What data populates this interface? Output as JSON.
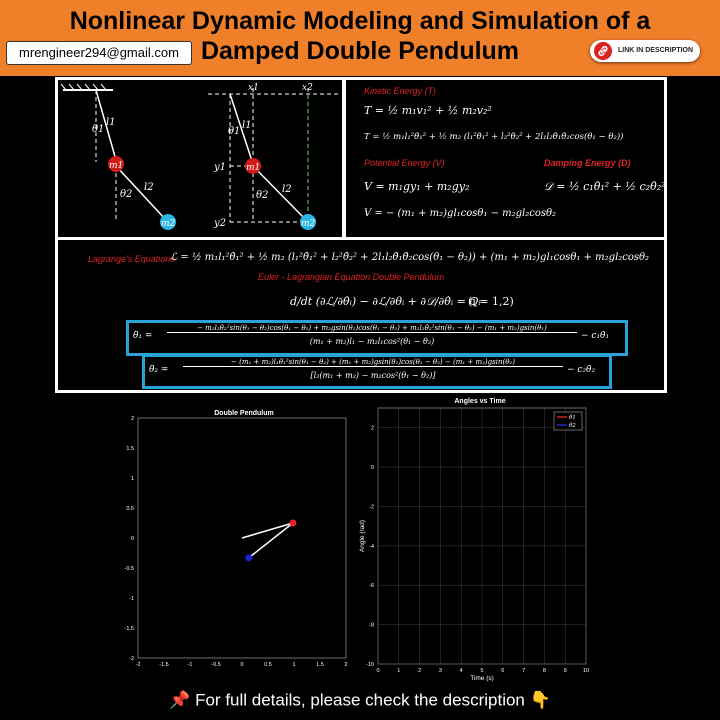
{
  "header": {
    "title": "Nonlinear Dynamic Modeling and Simulation of a Damped Double Pendulum",
    "email": "mrengineer294@gmail.com",
    "link_label": "LINK IN DESCRIPTION",
    "bg_color": "#f07f2a"
  },
  "diagram": {
    "labels": {
      "theta1": "θ1",
      "l1": "l1",
      "m1": "m1",
      "theta2": "θ2",
      "l2": "l2",
      "m2": "m2",
      "x1": "x1",
      "x2": "x2",
      "y1": "y1",
      "y2": "y2"
    },
    "m1_color": "#d11a1a",
    "m2_color": "#2ab6e6"
  },
  "energy": {
    "kinetic_title": "Kinetic Energy (T)",
    "kinetic_eq1": "T = ½ m₁v₁² + ½ m₂v₂²",
    "kinetic_eq2": "T = ½ m₁l₁²θ̇₁² + ½ m₂ (l₁²θ̇₁² + l₂²θ̇₂² + 2l₁l₂θ̇₁θ̇₂cos(θ₁ − θ₂))",
    "potential_title": "Potential Energy (V)",
    "potential_eq1": "V = m₁gy₁ + m₂gy₂",
    "potential_eq2": "V = − (m₁ + m₂)gl₁cosθ₁ − m₂gl₂cosθ₂",
    "damping_title": "Damping Energy (D)",
    "damping_eq": "𝒟 = ½ c₁θ̇₁² + ½ c₂θ̇₂²"
  },
  "lagrange": {
    "title": "Lagrange's Equations",
    "eq": "ℒ = ½ m₁l₁²θ̇₁² + ½ m₂ (l₁²θ̇₁² + l₂²θ̇₂² + 2l₁l₂θ̇₁θ̇₂cos(θ₁ − θ₂)) + (m₁ + m₂)gl₁cosθ₁ + m₂gl₂cosθ₂",
    "euler_title": "Euler - Lagrangian Equation Double Pendulum",
    "euler_eq": "d/dt (∂ℒ/∂θ̇ᵢ) − ∂ℒ/∂θᵢ + ∂𝒟/∂θ̇ᵢ = Qᵢ",
    "euler_range": "(i = 1,2)",
    "theta1_lhs": "θ̈₁ =",
    "theta1_num": "− m₂l₂θ̇₂²sin(θ₁ − θ₂)cos(θ₁ − θ₂) + m₂gsin(θ₂)cos(θ₁ − θ₂) + m₂l₂θ̇₂²sin(θ₁ − θ₂) − (m₁ + m₂)gsin(θ₁)",
    "theta1_den": "(m₁ + m₂)l₁ − m₂l₁cos²(θ₁ − θ₂)",
    "theta1_tail": "− c₁θ̇₁",
    "theta2_lhs": "θ̈₂ =",
    "theta2_num": "− (m₁ + m₂)l₁θ̇₁²sin(θ₁ − θ₂) + (m₁ + m₂)gsin(θ₁)cos(θ₁ − θ₂) − (m₁ + m₂)gsin(θ₂)",
    "theta2_den": "[l₂(m₁ + m₂) − m₂cos²(θ₁ − θ₂)]",
    "theta2_tail": "− c₂θ̇₂"
  },
  "pendulum_plot": {
    "title": "Double Pendulum",
    "xlim": [
      -2,
      2
    ],
    "ylim": [
      -2,
      2
    ],
    "xticks": [
      "-2",
      "-1.5",
      "-1",
      "-0.5",
      "0",
      "0.5",
      "1",
      "1.5",
      "2"
    ],
    "yticks": [
      "2",
      "1.5",
      "1",
      "0.5",
      "0",
      "-0.5",
      "-1",
      "-1.5",
      "-2"
    ],
    "pivot": [
      0,
      0
    ],
    "bob1": [
      0.98,
      0.25
    ],
    "bob2": [
      0.13,
      -0.33
    ],
    "bob1_color": "#e8262a",
    "bob2_color": "#1b22d0"
  },
  "chart_data": {
    "type": "line",
    "title": "Angles vs Time",
    "xlabel": "Time (s)",
    "ylabel": "Angle (rad)",
    "xlim": [
      0,
      10
    ],
    "ylim": [
      -10,
      3
    ],
    "xticks": [
      "0",
      "1",
      "2",
      "3",
      "4",
      "5",
      "6",
      "7",
      "8",
      "9",
      "10"
    ],
    "yticks": [
      "2",
      "0",
      "-2",
      "-4",
      "-6",
      "-8",
      "-10"
    ],
    "grid": true,
    "legend_position": "top-right",
    "series": [
      {
        "name": "θ1",
        "color": "#ff2a2a",
        "x": [],
        "values": []
      },
      {
        "name": "θ2",
        "color": "#2a35ff",
        "x": [],
        "values": []
      }
    ]
  },
  "footer": {
    "pin_icon": "📌",
    "text": "For full details, please check the description",
    "pointer_icon": "👇"
  }
}
